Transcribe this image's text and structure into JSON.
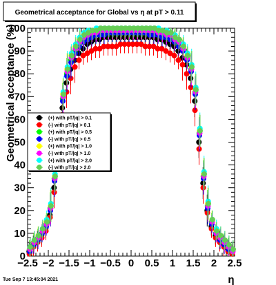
{
  "header": {
    "title": "Geometrical acceptance for Global vs    η  at pT > 0.11"
  },
  "footer": {
    "timestamp": "Tue Sep  7 13:45:04 2021"
  },
  "chart_data": {
    "type": "scatter",
    "title": "Geometrical acceptance for Global vs    η  at pT > 0.11",
    "xlabel": "η",
    "ylabel": "Geometrical acceptance (%)",
    "xlim": [
      -2.5,
      2.5
    ],
    "ylim": [
      0,
      100
    ],
    "x_ticks": [
      -2.5,
      -2,
      -1.5,
      -1,
      -0.5,
      0,
      0.5,
      1,
      1.5,
      2,
      2.5
    ],
    "x_tick_labels": [
      "−2.5",
      "−2",
      "−1.5",
      "−1",
      "−0.5",
      "0",
      "0.5",
      "1",
      "1.5",
      "2",
      "2.5"
    ],
    "y_ticks": [
      0,
      10,
      20,
      30,
      40,
      50,
      60,
      70,
      80,
      90,
      100
    ],
    "y_tick_labels": [
      "0",
      "10",
      "20",
      "30",
      "40",
      "50",
      "60",
      "70",
      "80",
      "90",
      "100"
    ],
    "grid": false,
    "legend_position": "left-center",
    "x": [
      -2.45,
      -2.35,
      -2.25,
      -2.15,
      -2.05,
      -1.95,
      -1.85,
      -1.75,
      -1.65,
      -1.55,
      -1.45,
      -1.35,
      -1.25,
      -1.15,
      -1.05,
      -0.95,
      -0.85,
      -0.75,
      -0.65,
      -0.55,
      -0.45,
      -0.35,
      -0.25,
      -0.15,
      -0.05,
      0.05,
      0.15,
      0.25,
      0.35,
      0.45,
      0.55,
      0.65,
      0.75,
      0.85,
      0.95,
      1.05,
      1.15,
      1.25,
      1.35,
      1.45,
      1.55,
      1.65,
      1.75,
      1.85,
      1.95,
      2.05,
      2.15,
      2.25,
      2.35,
      2.45
    ],
    "series": [
      {
        "name": "(+) with pT/|q| > 0.1",
        "color": "#000000",
        "marker": "circle",
        "values": [
          2,
          5,
          7,
          9,
          12,
          18,
          30,
          48,
          65,
          76,
          82,
          86,
          89,
          91,
          93,
          94,
          95,
          95,
          96,
          96,
          96,
          96,
          96,
          96,
          96,
          96,
          96,
          96,
          96,
          96,
          96,
          95,
          95,
          94,
          93,
          92,
          90,
          87,
          84,
          78,
          68,
          50,
          32,
          20,
          13,
          9,
          7,
          5,
          3,
          1
        ]
      },
      {
        "name": "(-) with pT/|q| > 0.1",
        "color": "#ff0000",
        "marker": "circle",
        "values": [
          1,
          4,
          6,
          8,
          11,
          17,
          28,
          45,
          62,
          72,
          78,
          83,
          86,
          88,
          89,
          90,
          91,
          91,
          92,
          92,
          92,
          92,
          93,
          93,
          93,
          93,
          93,
          93,
          92,
          92,
          92,
          91,
          91,
          90,
          89,
          88,
          86,
          84,
          80,
          74,
          64,
          47,
          30,
          19,
          12,
          8,
          6,
          4,
          2,
          1
        ]
      },
      {
        "name": "(+) with pT/|q| > 0.5",
        "color": "#00ff00",
        "marker": "circle",
        "values": [
          3,
          6,
          8,
          10,
          14,
          21,
          34,
          52,
          69,
          80,
          86,
          90,
          93,
          95,
          96,
          97,
          97,
          98,
          98,
          98,
          98,
          98,
          98,
          98,
          98,
          98,
          98,
          98,
          98,
          98,
          98,
          98,
          97,
          97,
          96,
          95,
          93,
          91,
          87,
          82,
          72,
          54,
          35,
          22,
          15,
          10,
          8,
          6,
          4,
          2
        ]
      },
      {
        "name": "(-) with pT/|q| > 0.5",
        "color": "#0000ff",
        "marker": "circle",
        "values": [
          2,
          5,
          7,
          10,
          13,
          20,
          33,
          51,
          68,
          79,
          85,
          89,
          92,
          94,
          95,
          96,
          97,
          97,
          97,
          98,
          98,
          98,
          98,
          98,
          98,
          98,
          98,
          98,
          98,
          97,
          97,
          97,
          96,
          96,
          95,
          94,
          92,
          90,
          86,
          81,
          71,
          53,
          34,
          21,
          14,
          10,
          7,
          5,
          3,
          2
        ]
      },
      {
        "name": "(+) with pT/|q| > 1.0",
        "color": "#ffff00",
        "marker": "circle",
        "values": [
          3,
          6,
          9,
          11,
          15,
          22,
          35,
          54,
          71,
          82,
          88,
          92,
          95,
          97,
          98,
          98,
          99,
          99,
          99,
          99,
          99,
          99,
          99,
          99,
          99,
          99,
          99,
          99,
          99,
          99,
          99,
          99,
          98,
          98,
          97,
          96,
          94,
          92,
          88,
          83,
          73,
          55,
          36,
          23,
          16,
          11,
          8,
          6,
          4,
          2
        ]
      },
      {
        "name": "(-) with pT/|q| > 1.0",
        "color": "#ff00ff",
        "marker": "circle",
        "values": [
          3,
          6,
          8,
          11,
          14,
          21,
          34,
          53,
          70,
          81,
          87,
          91,
          94,
          96,
          97,
          98,
          98,
          99,
          99,
          99,
          99,
          99,
          99,
          99,
          99,
          99,
          99,
          99,
          99,
          99,
          99,
          98,
          98,
          97,
          97,
          95,
          94,
          91,
          87,
          82,
          72,
          54,
          35,
          22,
          15,
          10,
          8,
          6,
          4,
          2
        ]
      },
      {
        "name": "(+) with pT/|q| > 2.0",
        "color": "#00ffff",
        "marker": "circle",
        "values": [
          4,
          7,
          9,
          12,
          16,
          23,
          36,
          55,
          72,
          83,
          89,
          93,
          96,
          98,
          99,
          99,
          100,
          100,
          100,
          100,
          100,
          100,
          100,
          100,
          100,
          100,
          100,
          100,
          100,
          100,
          100,
          100,
          99,
          99,
          98,
          97,
          95,
          93,
          89,
          84,
          74,
          56,
          37,
          24,
          16,
          12,
          9,
          7,
          5,
          3
        ]
      },
      {
        "name": "(-) with pT/|q| > 2.0",
        "color": "#66cc55",
        "marker": "circle",
        "values": [
          4,
          7,
          9,
          12,
          15,
          22,
          35,
          54,
          71,
          82,
          88,
          92,
          95,
          97,
          98,
          99,
          99,
          100,
          100,
          100,
          100,
          100,
          100,
          100,
          100,
          100,
          100,
          100,
          100,
          100,
          100,
          99,
          99,
          98,
          98,
          96,
          95,
          92,
          88,
          83,
          73,
          55,
          36,
          23,
          16,
          11,
          9,
          7,
          5,
          3
        ]
      }
    ]
  }
}
